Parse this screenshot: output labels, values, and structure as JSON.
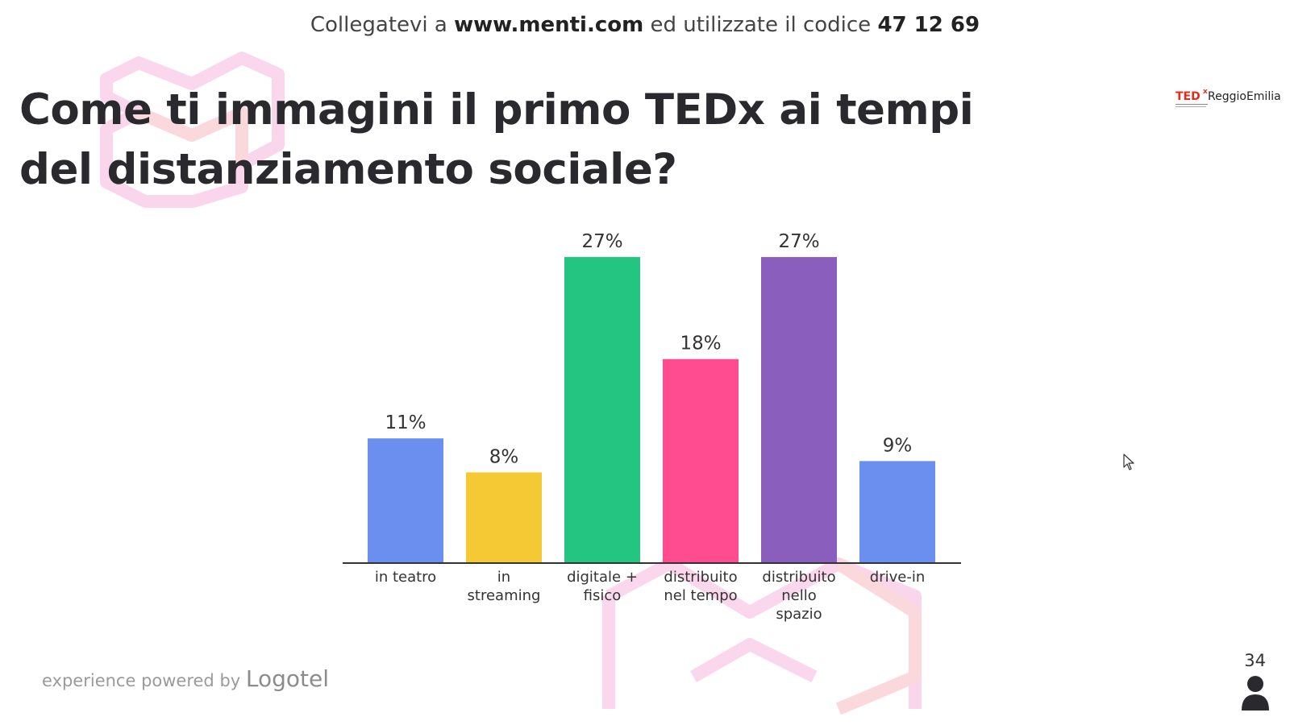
{
  "header": {
    "prefix": "Collegatevi a",
    "url": "www.menti.com",
    "middle": "ed utilizzate il codice",
    "code": "47 12 69"
  },
  "question": {
    "title": "Come ti immagini il primo TEDx ai tempi del distanziamento sociale?"
  },
  "logo": {
    "ted": "TED",
    "x": "x",
    "city": "ReggioEmilia"
  },
  "footer": {
    "powered_prefix": "experience powered by",
    "powered_brand": "Logotel"
  },
  "responses": {
    "count": "34"
  },
  "icons": {
    "person": "person-icon",
    "cursor": "cursor-icon"
  },
  "chart_data": {
    "type": "bar",
    "categories": [
      [
        "in teatro"
      ],
      [
        "in",
        "streaming"
      ],
      [
        "digitale +",
        "fisico"
      ],
      [
        "distribuito",
        "nel tempo"
      ],
      [
        "distribuito",
        "nello",
        "spazio"
      ],
      [
        "drive-in"
      ]
    ],
    "values": [
      11,
      8,
      27,
      18,
      27,
      9
    ],
    "value_labels": [
      "11%",
      "8%",
      "27%",
      "18%",
      "27%",
      "9%"
    ],
    "colors": [
      "#6b8fee",
      "#f5c934",
      "#23c581",
      "#ff4b8f",
      "#8a5ebd",
      "#6b8fee"
    ],
    "ylim": [
      0,
      28
    ],
    "grid": false,
    "legend": "none"
  }
}
